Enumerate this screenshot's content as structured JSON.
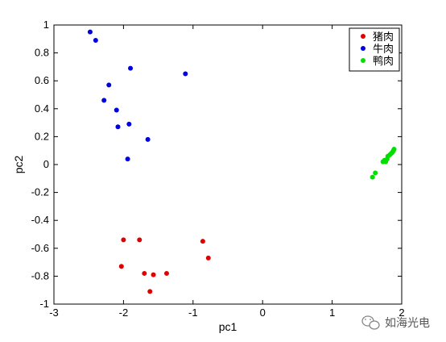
{
  "chart_data": {
    "type": "scatter",
    "title": "",
    "xlabel": "pc1",
    "ylabel": "pc2",
    "xlim": [
      -3,
      2
    ],
    "ylim": [
      -1,
      1
    ],
    "xticks": [
      "-3",
      "-2",
      "-1",
      "0",
      "1",
      "2"
    ],
    "yticks": [
      "1",
      "0.8",
      "0.6",
      "0.4",
      "0.2",
      "0",
      "-0.2",
      "-0.4",
      "-0.6",
      "-0.8",
      "-1"
    ],
    "grid": false,
    "legend_position": "top-right",
    "series": [
      {
        "name": "猪肉",
        "color": "#e00000",
        "points": [
          [
            -2.0,
            -0.54
          ],
          [
            -1.77,
            -0.54
          ],
          [
            -0.86,
            -0.55
          ],
          [
            -0.78,
            -0.67
          ],
          [
            -2.03,
            -0.73
          ],
          [
            -1.7,
            -0.78
          ],
          [
            -1.38,
            -0.78
          ],
          [
            -1.57,
            -0.79
          ],
          [
            -1.62,
            -0.91
          ]
        ]
      },
      {
        "name": "牛肉",
        "color": "#0000e0",
        "points": [
          [
            -2.48,
            0.95
          ],
          [
            -2.4,
            0.89
          ],
          [
            -1.11,
            0.65
          ],
          [
            -1.9,
            0.69
          ],
          [
            -2.21,
            0.57
          ],
          [
            -2.28,
            0.46
          ],
          [
            -2.1,
            0.39
          ],
          [
            -2.08,
            0.27
          ],
          [
            -1.92,
            0.29
          ],
          [
            -1.65,
            0.18
          ],
          [
            -1.94,
            0.04
          ]
        ]
      },
      {
        "name": "鸭肉",
        "color": "#00e000",
        "points": [
          [
            1.58,
            -0.09
          ],
          [
            1.62,
            -0.06
          ],
          [
            1.73,
            0.02
          ],
          [
            1.75,
            0.03
          ],
          [
            1.77,
            0.02
          ],
          [
            1.79,
            0.04
          ],
          [
            1.8,
            0.06
          ],
          [
            1.83,
            0.07
          ],
          [
            1.85,
            0.08
          ],
          [
            1.87,
            0.09
          ],
          [
            1.88,
            0.1
          ],
          [
            1.89,
            0.11
          ]
        ]
      }
    ]
  },
  "watermark": {
    "text": "如海光电",
    "icon": "wechat-icon"
  }
}
